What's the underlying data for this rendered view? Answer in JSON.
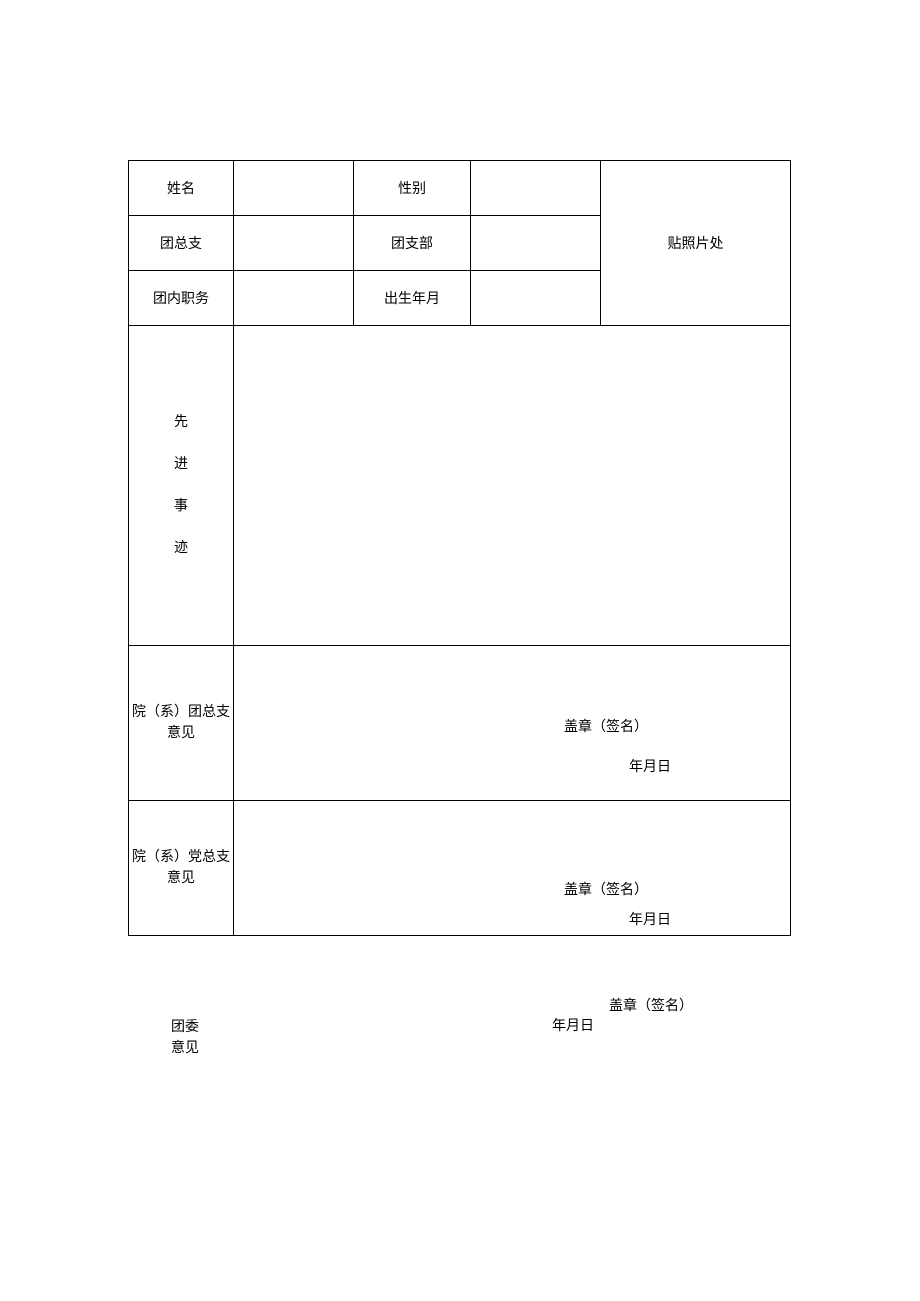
{
  "type": "table",
  "background_color": "#ffffff",
  "border_color": "#000000",
  "text_color": "#000000",
  "font_family": "SimSun",
  "label_fontsize": 14,
  "columns": {
    "widths": [
      105,
      120,
      117,
      130,
      190
    ]
  },
  "header": {
    "name": "姓名",
    "gender": "性别",
    "photo": "贴照片处",
    "branch_general": "团总支",
    "branch": "团支部",
    "position": "团内职务",
    "birth": "出生年月"
  },
  "deeds": {
    "c1": "先",
    "c2": "进",
    "c3": "事",
    "c4": "迹"
  },
  "opinion1": {
    "label": "院（系）团总支意见",
    "stamp": "盖章（签名）",
    "date": "年月日"
  },
  "opinion2": {
    "label": "院（系）党总支意见",
    "stamp": "盖章（签名）",
    "date": "年月日"
  },
  "opinion3": {
    "label_l1": "团委",
    "label_l2": "意见",
    "stamp": "盖章（签名）",
    "date": "年月日"
  }
}
